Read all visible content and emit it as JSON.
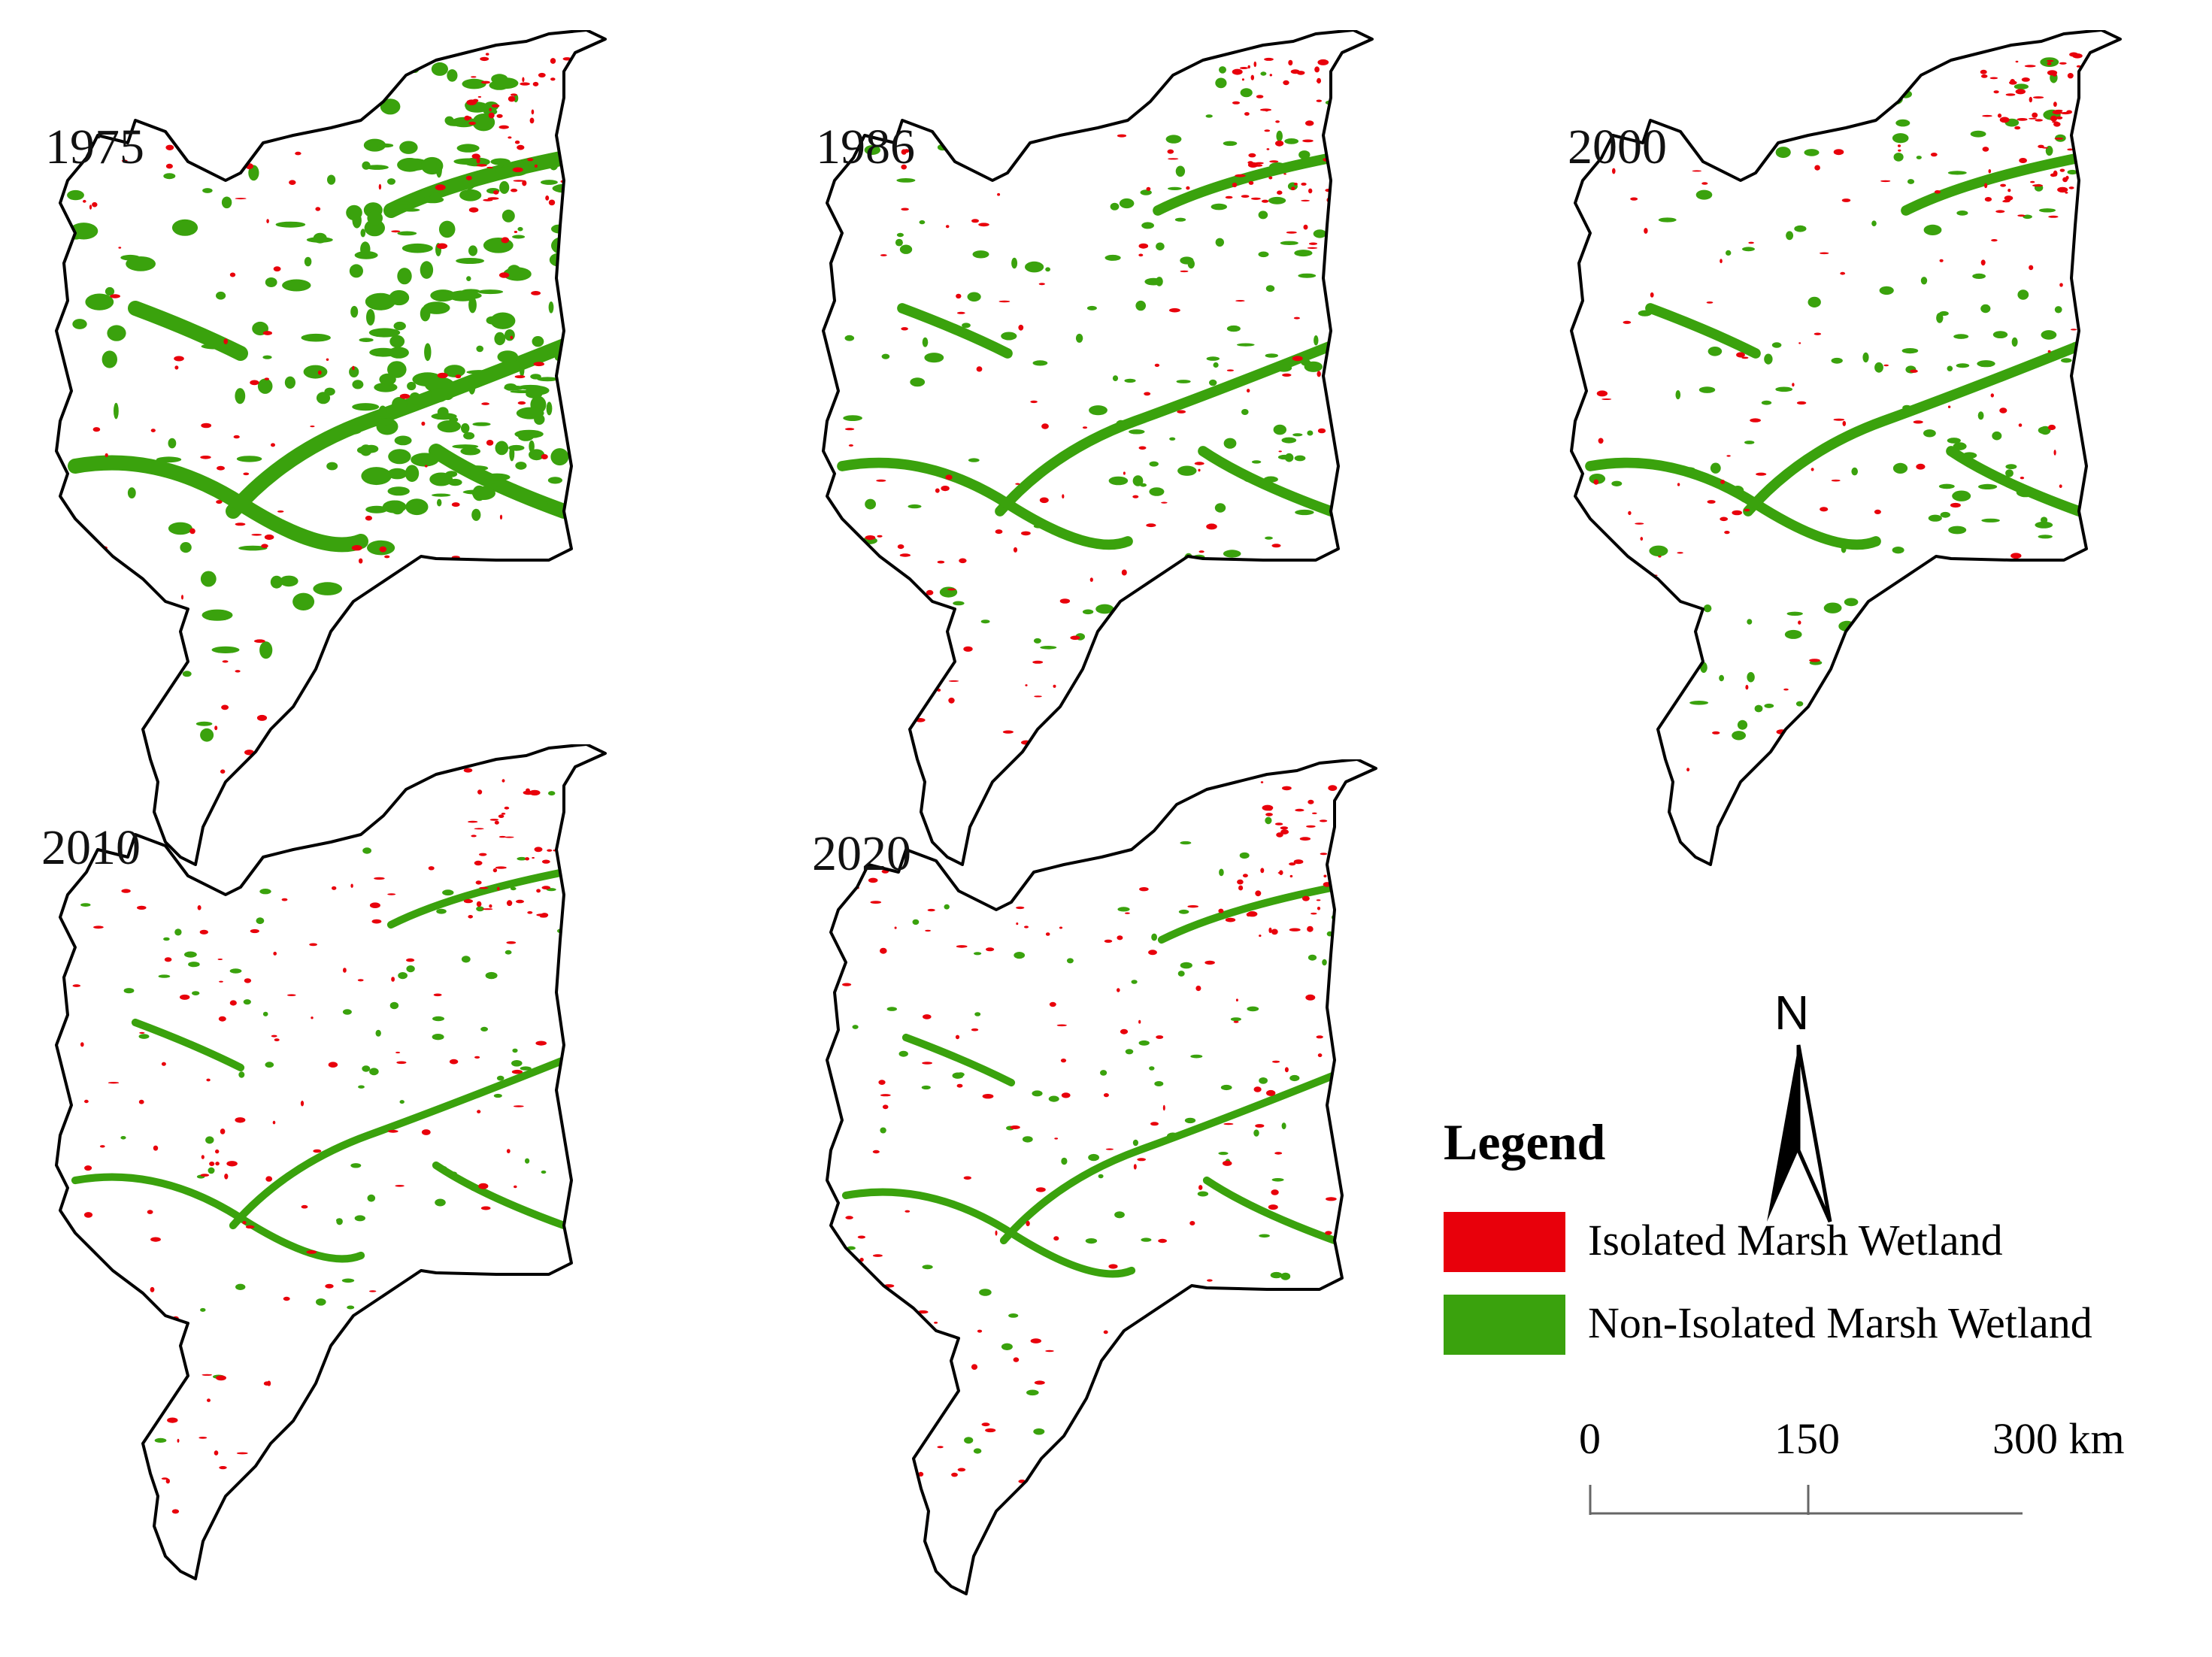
{
  "panels": [
    {
      "year": "1975",
      "wetland": "heavy"
    },
    {
      "year": "1986",
      "wetland": "medium"
    },
    {
      "year": "2000",
      "wetland": "medium"
    },
    {
      "year": "2010",
      "wetland": "light"
    },
    {
      "year": "2020",
      "wetland": "light"
    }
  ],
  "legend": {
    "title": "Legend",
    "items": [
      {
        "label": "Isolated Marsh Wetland",
        "color": "#e8000b"
      },
      {
        "label": "Non-Isolated Marsh Wetland",
        "color": "#3aa20d"
      }
    ]
  },
  "north_arrow": {
    "label": "N"
  },
  "scale_bar": {
    "ticks": [
      "0",
      "150",
      "300 km"
    ]
  },
  "colors": {
    "isolated": "#e8000b",
    "non_isolated": "#3aa20d",
    "boundary": "#000000"
  }
}
